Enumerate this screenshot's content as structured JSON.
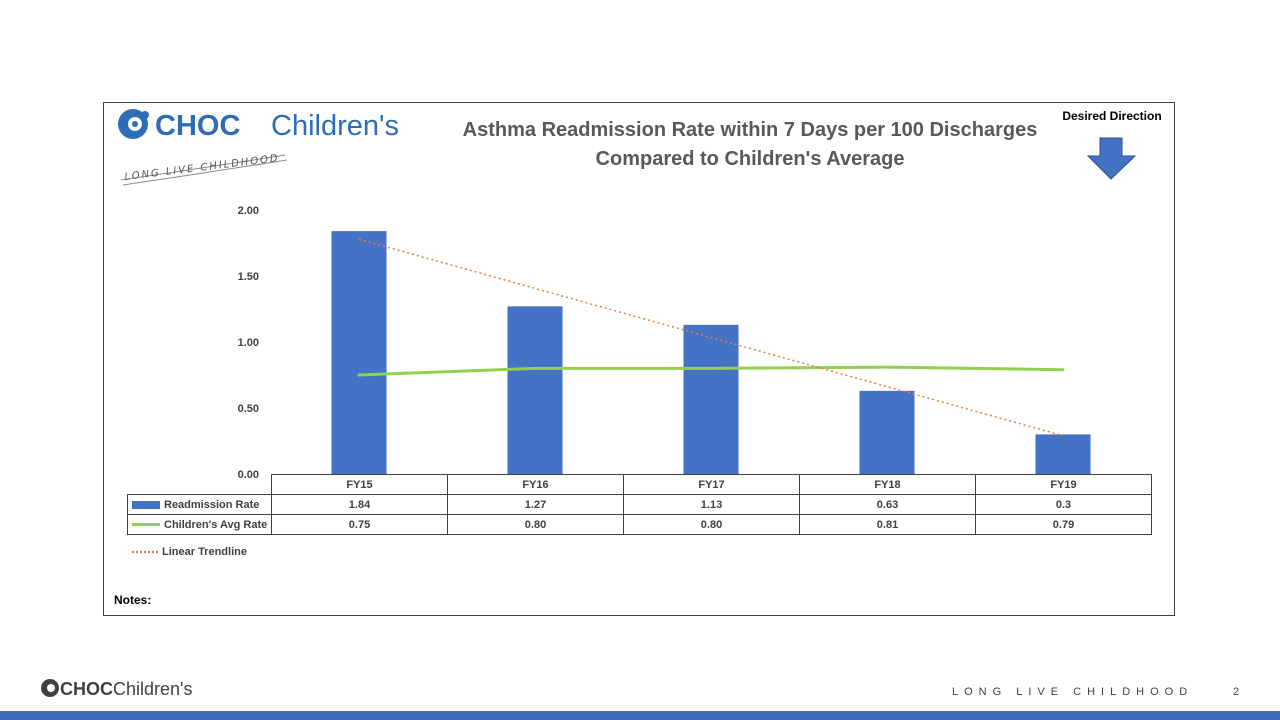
{
  "logo": {
    "brand": "CHOC",
    "name": "Children's",
    "tagline": "LONG LIVE CHILDHOOD",
    "color": "#2e6db5"
  },
  "title_line1": "Asthma Readmission Rate within 7 Days per 100 Discharges",
  "title_line2": "Compared to Children's Average",
  "desired_direction": {
    "label": "Desired Direction",
    "icon": "down-arrow-icon",
    "direction": "down",
    "color": "#4472c4"
  },
  "notes_label": "Notes:",
  "chart_data": {
    "type": "bar",
    "categories": [
      "FY15",
      "FY16",
      "FY17",
      "FY18",
      "FY19"
    ],
    "series": [
      {
        "name": "Readmission Rate",
        "type": "bar",
        "color": "#4472c4",
        "values": [
          1.84,
          1.27,
          1.13,
          0.63,
          0.3
        ],
        "display": [
          "1.84",
          "1.27",
          "1.13",
          "0.63",
          "0.3"
        ]
      },
      {
        "name": "Children's Avg Rate",
        "type": "line",
        "color": "#92d050",
        "values": [
          0.75,
          0.8,
          0.8,
          0.81,
          0.79
        ],
        "display": [
          "0.75",
          "0.80",
          "0.80",
          "0.81",
          "0.79"
        ]
      }
    ],
    "trendline": {
      "name": "Linear Trendline",
      "type": "linear",
      "color": "#ed7d31",
      "style": "dotted"
    },
    "yticks": [
      "0.00",
      "0.50",
      "1.00",
      "1.50",
      "2.00"
    ],
    "ylim": [
      0,
      2
    ],
    "legend": "data-table"
  },
  "footer": {
    "brand": "CHOC",
    "name": "Children's",
    "tagline": "LONG LIVE CHILDHOOD",
    "page_number": "2",
    "bar_color": "#3e6bbd"
  }
}
